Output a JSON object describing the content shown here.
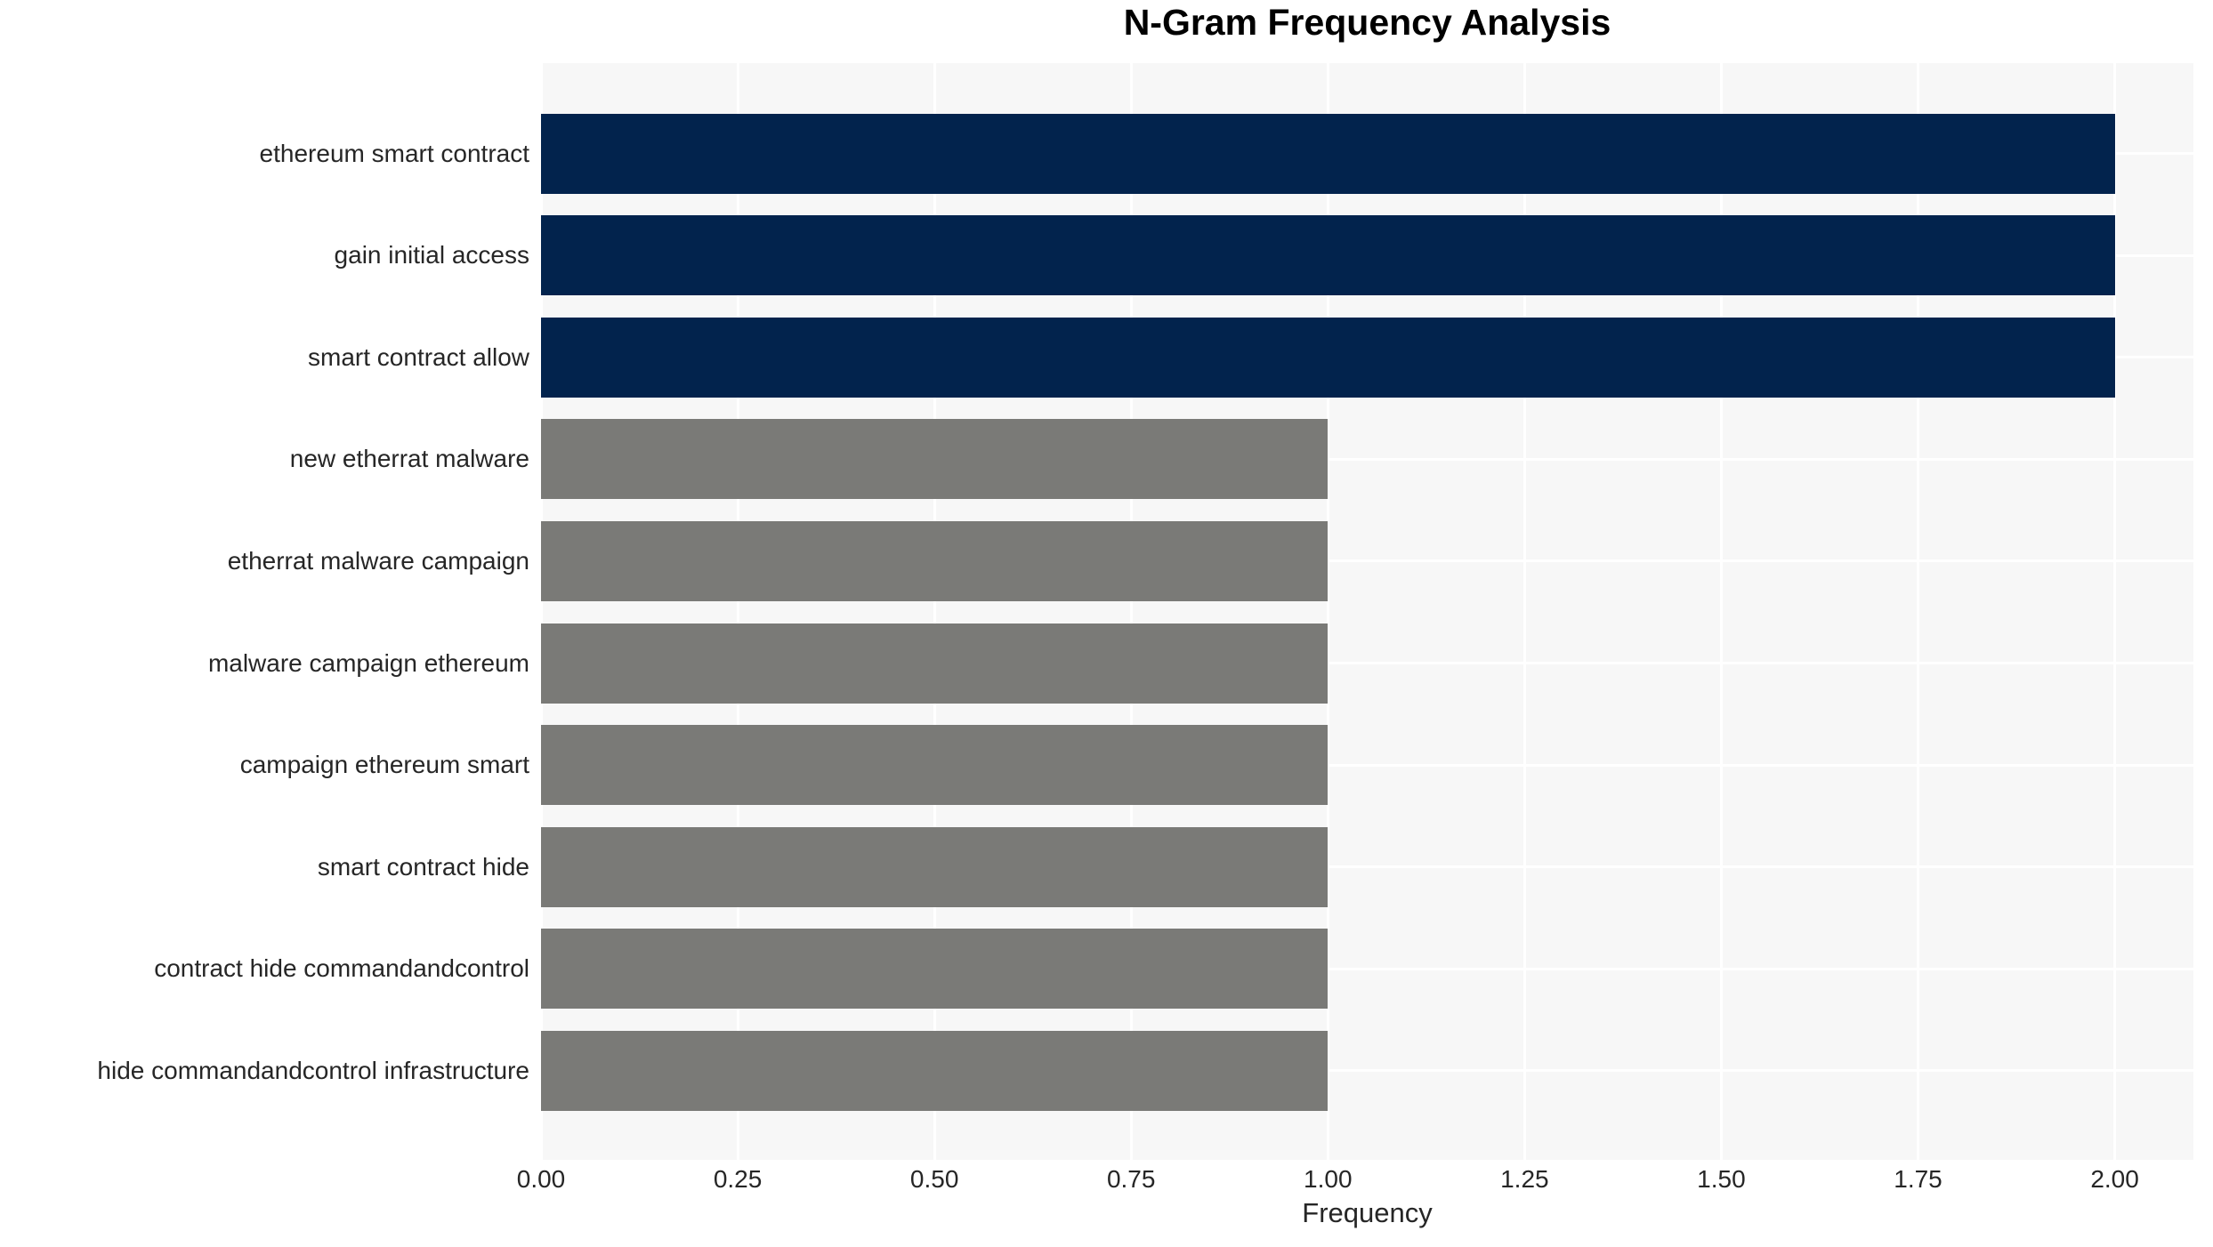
{
  "title": "N-Gram Frequency Analysis",
  "chart_data": {
    "type": "bar",
    "orientation": "horizontal",
    "title": "N-Gram Frequency Analysis",
    "xlabel": "Frequency",
    "ylabel": "",
    "categories": [
      "ethereum smart contract",
      "gain initial access",
      "smart contract allow",
      "new etherrat malware",
      "etherrat malware campaign",
      "malware campaign ethereum",
      "campaign ethereum smart",
      "smart contract hide",
      "contract hide commandandcontrol",
      "hide commandandcontrol infrastructure"
    ],
    "values": [
      2,
      2,
      2,
      1,
      1,
      1,
      1,
      1,
      1,
      1
    ],
    "xlim": [
      0,
      2.1
    ],
    "xticks": [
      "0.00",
      "0.25",
      "0.50",
      "0.75",
      "1.00",
      "1.25",
      "1.50",
      "1.75",
      "2.00"
    ],
    "xtick_values": [
      0,
      0.25,
      0.5,
      0.75,
      1.0,
      1.25,
      1.5,
      1.75,
      2.0
    ],
    "grid": true,
    "legend": false,
    "colors": {
      "high_frequency_bar": "#02234d",
      "low_frequency_bar": "#7a7a77",
      "plot_background": "#f7f7f7",
      "gridline": "#ffffff",
      "title_text": "#000000",
      "tick_text": "#262626"
    },
    "bar_colors": [
      "#02234d",
      "#02234d",
      "#02234d",
      "#7a7a77",
      "#7a7a77",
      "#7a7a77",
      "#7a7a77",
      "#7a7a77",
      "#7a7a77",
      "#7a7a77"
    ]
  }
}
